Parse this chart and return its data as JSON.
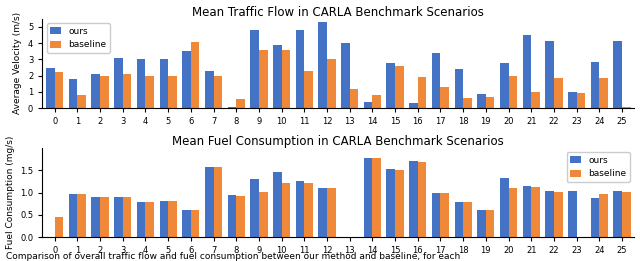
{
  "title1": "Mean Traffic Flow in CARLA Benchmark Scenarios",
  "title2": "Mean Fuel Consumption in CARLA Benchmark Scenarios",
  "ylabel1": "Average Velocity (m/s)",
  "ylabel2": "Fuel Consumption (mg/s)",
  "caption": "Comparison of overall traffic flow and fuel consumption between our method and baseline, for each",
  "scenarios": [
    0,
    1,
    2,
    3,
    4,
    5,
    6,
    7,
    8,
    9,
    10,
    11,
    12,
    13,
    14,
    15,
    16,
    17,
    18,
    19,
    20,
    21,
    22,
    23,
    24,
    25
  ],
  "velocity_ours": [
    2.5,
    1.8,
    2.1,
    3.1,
    3.05,
    3.05,
    3.5,
    2.3,
    0.1,
    4.8,
    3.9,
    4.8,
    5.3,
    4.0,
    0.4,
    2.8,
    0.35,
    3.4,
    2.4,
    0.85,
    2.8,
    4.5,
    4.15,
    1.0,
    2.85,
    4.1
  ],
  "velocity_baseline": [
    2.25,
    0.8,
    2.0,
    2.1,
    1.95,
    1.95,
    4.05,
    2.0,
    0.6,
    3.6,
    3.6,
    2.3,
    3.0,
    1.2,
    0.8,
    2.6,
    1.9,
    1.3,
    0.65,
    0.7,
    1.95,
    1.0,
    1.85,
    0.95,
    1.85,
    0.1
  ],
  "fuel_ours": [
    0.0,
    0.97,
    0.9,
    0.9,
    0.8,
    0.82,
    0.62,
    1.56,
    0.95,
    1.3,
    1.45,
    1.25,
    1.1,
    0.0,
    1.78,
    1.52,
    1.7,
    0.98,
    0.8,
    0.6,
    1.32,
    1.15,
    1.03,
    1.03,
    0.88,
    1.03
  ],
  "fuel_baseline": [
    0.45,
    0.96,
    0.9,
    0.9,
    0.8,
    0.82,
    0.62,
    1.58,
    0.93,
    1.02,
    1.22,
    1.21,
    1.1,
    0.0,
    1.78,
    1.5,
    1.68,
    0.98,
    0.78,
    0.62,
    1.1,
    1.12,
    1.02,
    0.0,
    0.96,
    1.02
  ],
  "color_ours": "#4472c4",
  "color_baseline": "#f0883a",
  "bar_width": 0.38,
  "ylim1": [
    0,
    5.5
  ],
  "ylim2": [
    0.0,
    2.0
  ],
  "yticks1": [
    0,
    1,
    2,
    3,
    4,
    5
  ],
  "yticks2": [
    0.0,
    0.5,
    1.0,
    1.5
  ],
  "figsize": [
    6.4,
    2.61
  ],
  "dpi": 100
}
